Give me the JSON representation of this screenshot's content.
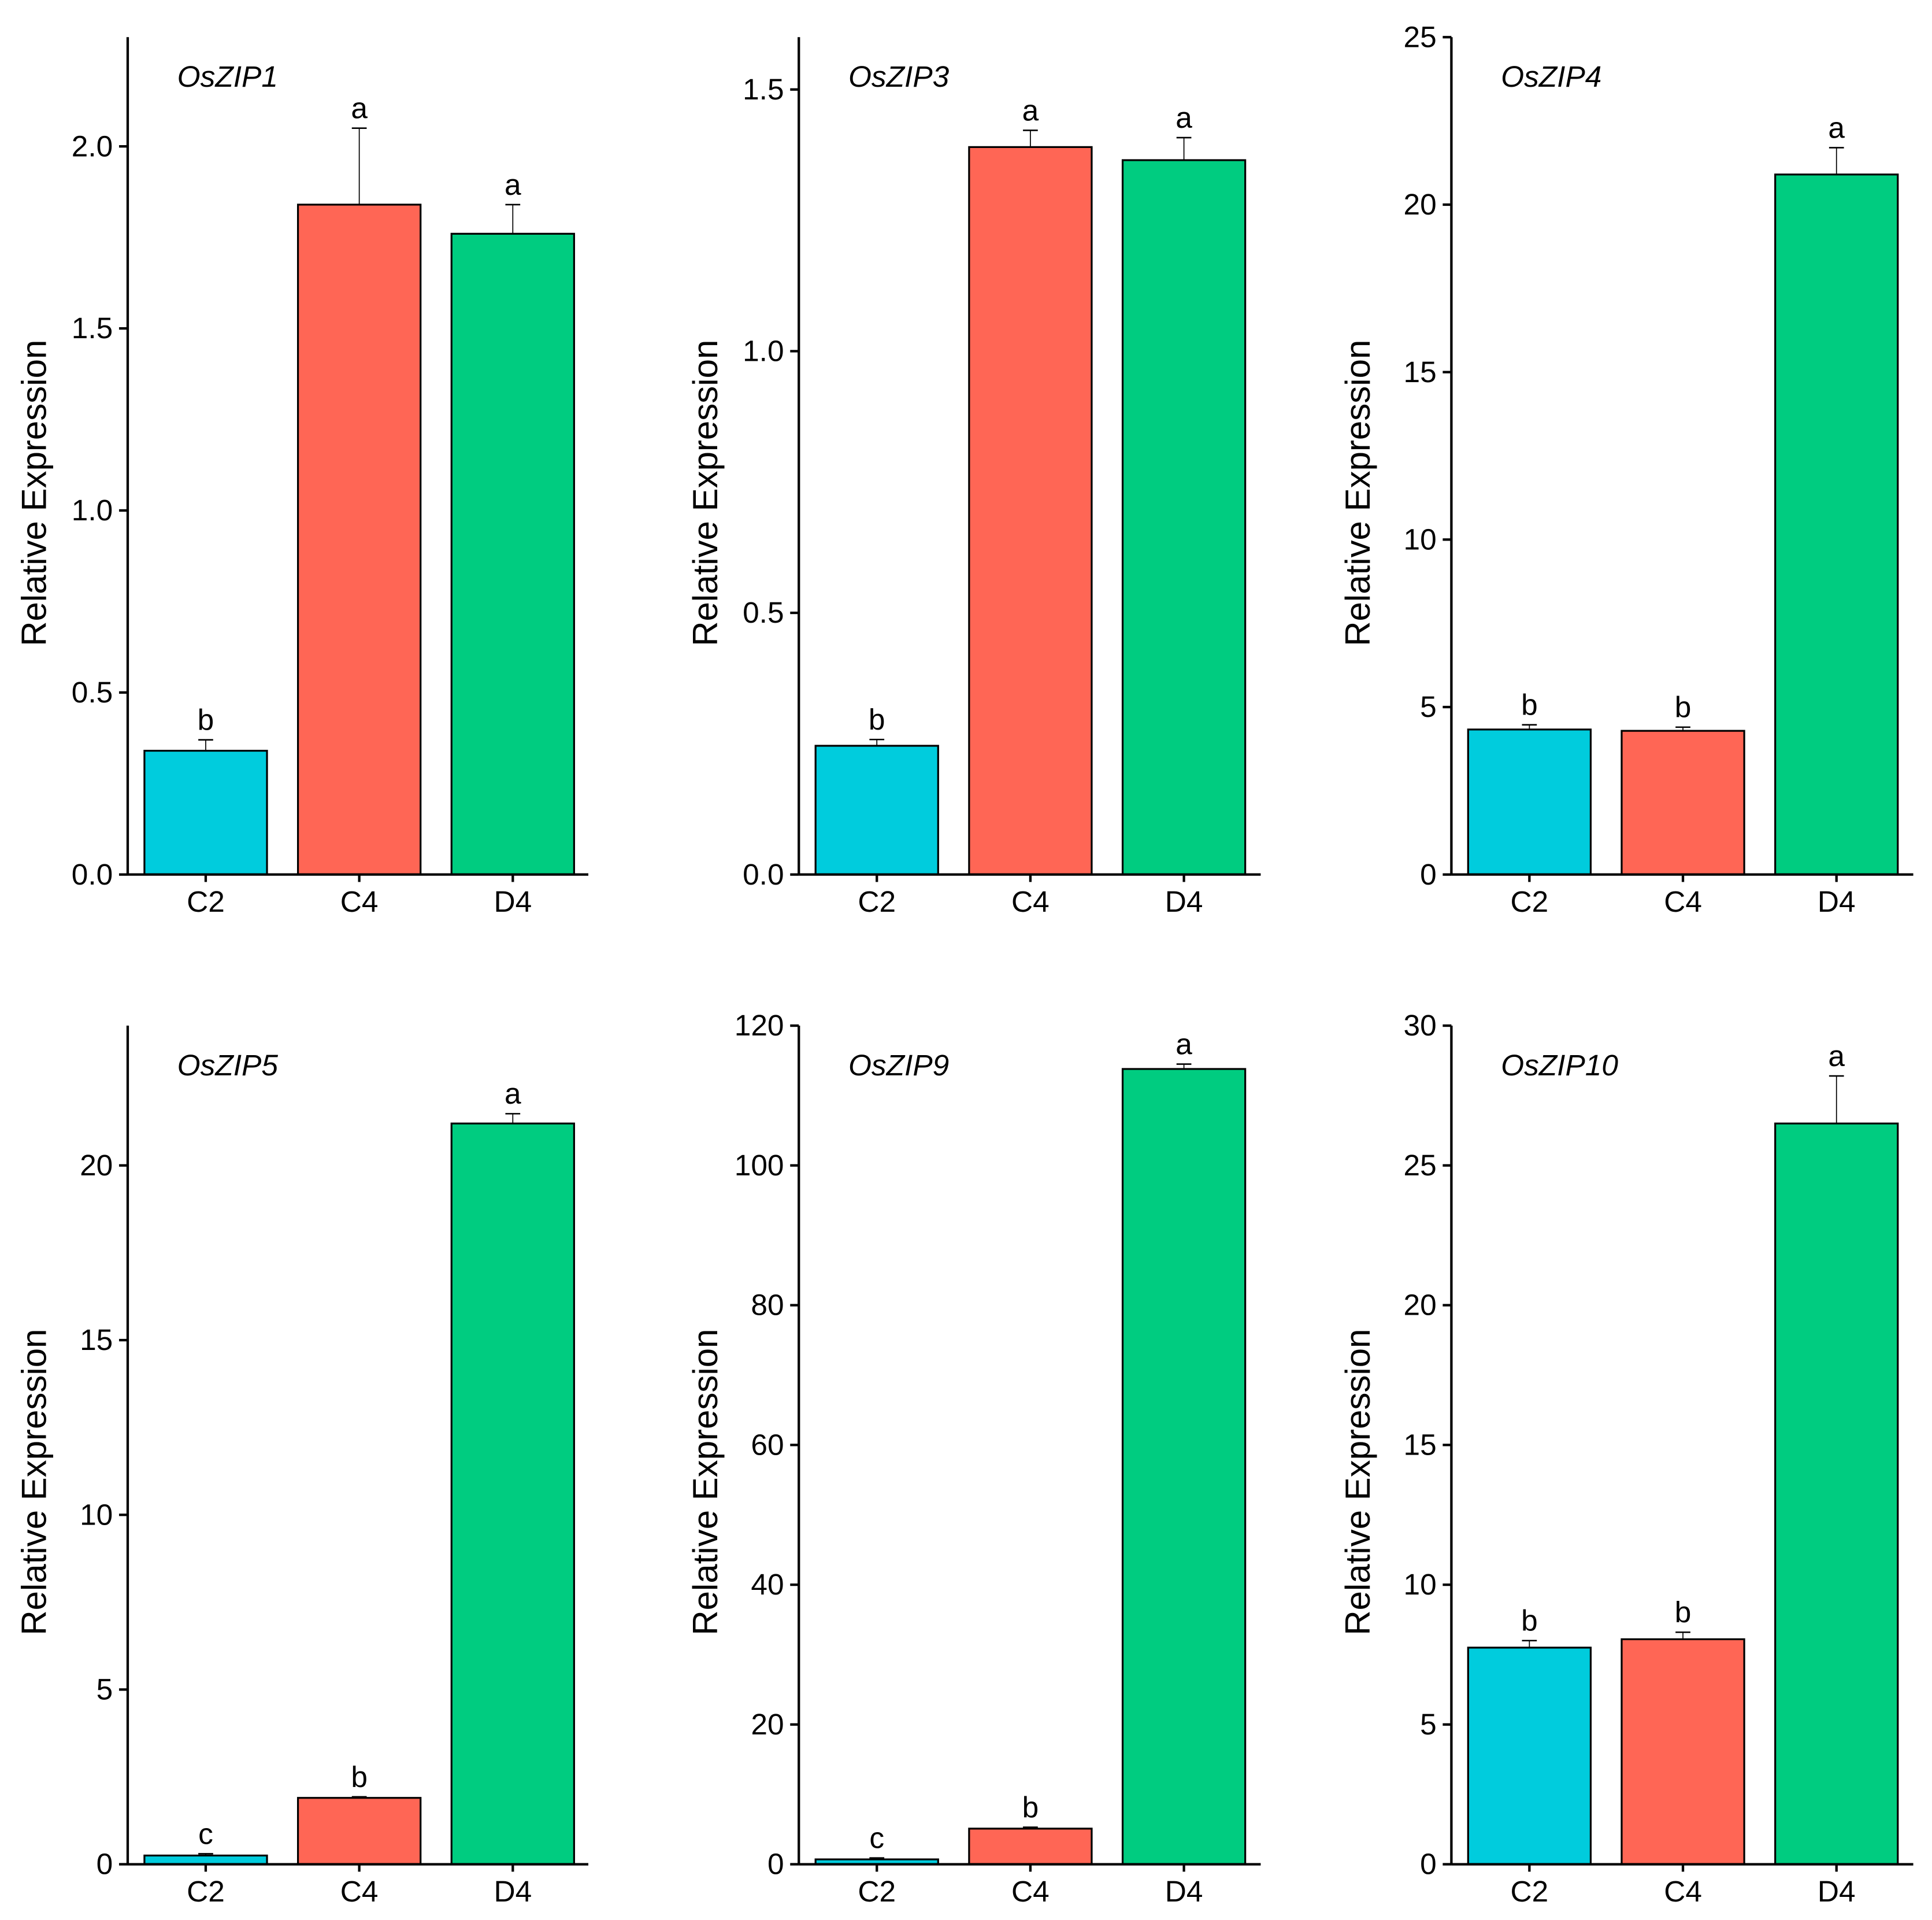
{
  "colors": {
    "C2": "#00CCDD",
    "C4": "#FF6655",
    "D4": "#00CC80",
    "axis": "#000000"
  },
  "chart_data": [
    {
      "type": "bar",
      "title": "OsZIP1",
      "ylabel": "Relative Expression",
      "categories": [
        "C2",
        "C4",
        "D4"
      ],
      "values": [
        0.34,
        1.84,
        1.76
      ],
      "errors": [
        0.03,
        0.21,
        0.08
      ],
      "letters": [
        "b",
        "a",
        "a"
      ],
      "ylim": [
        0,
        2.3
      ],
      "yticks": [
        0.0,
        0.5,
        1.0,
        1.5,
        2.0
      ],
      "ytick_labels": [
        "0.0",
        "0.5",
        "1.0",
        "1.5",
        "2.0"
      ]
    },
    {
      "type": "bar",
      "title": "OsZIP3",
      "ylabel": "Relative Expression",
      "categories": [
        "C2",
        "C4",
        "D4"
      ],
      "values": [
        0.246,
        1.39,
        1.365
      ],
      "errors": [
        0.012,
        0.032,
        0.043
      ],
      "letters": [
        "b",
        "a",
        "a"
      ],
      "ylim": [
        0,
        1.6
      ],
      "yticks": [
        0.0,
        0.5,
        1.0,
        1.5
      ],
      "ytick_labels": [
        "0.0",
        "0.5",
        "1.0",
        "1.5"
      ]
    },
    {
      "type": "bar",
      "title": "OsZIP4",
      "ylabel": "Relative Expression",
      "categories": [
        "C2",
        "C4",
        "D4"
      ],
      "values": [
        4.33,
        4.29,
        20.9
      ],
      "errors": [
        0.14,
        0.11,
        0.8
      ],
      "letters": [
        "b",
        "b",
        "a"
      ],
      "ylim": [
        0,
        25
      ],
      "yticks": [
        0,
        5,
        10,
        15,
        20,
        25
      ],
      "ytick_labels": [
        "0",
        "5",
        "10",
        "15",
        "20",
        "25"
      ]
    },
    {
      "type": "bar",
      "title": "OsZIP5",
      "ylabel": "Relative Expression",
      "categories": [
        "C2",
        "C4",
        "D4"
      ],
      "values": [
        0.25,
        1.9,
        21.2
      ],
      "errors": [
        0.05,
        0.03,
        0.28
      ],
      "letters": [
        "c",
        "b",
        "a"
      ],
      "ylim": [
        0,
        24
      ],
      "yticks": [
        0,
        5,
        10,
        15,
        20
      ],
      "ytick_labels": [
        "0",
        "5",
        "10",
        "15",
        "20"
      ]
    },
    {
      "type": "bar",
      "title": "OsZIP9",
      "ylabel": "Relative Expression",
      "categories": [
        "C2",
        "C4",
        "D4"
      ],
      "values": [
        0.7,
        5.1,
        113.8
      ],
      "errors": [
        0.2,
        0.2,
        0.7
      ],
      "letters": [
        "c",
        "b",
        "a"
      ],
      "ylim": [
        0,
        120
      ],
      "yticks": [
        0,
        20,
        40,
        60,
        80,
        100,
        120
      ],
      "ytick_labels": [
        "0",
        "20",
        "40",
        "60",
        "80",
        "100",
        "120"
      ]
    },
    {
      "type": "bar",
      "title": "OsZIP10",
      "ylabel": "Relative Expression",
      "categories": [
        "C2",
        "C4",
        "D4"
      ],
      "values": [
        7.75,
        8.05,
        26.5
      ],
      "errors": [
        0.25,
        0.25,
        1.7
      ],
      "letters": [
        "b",
        "b",
        "a"
      ],
      "ylim": [
        0,
        30
      ],
      "yticks": [
        0,
        5,
        10,
        15,
        20,
        25,
        30
      ],
      "ytick_labels": [
        "0",
        "5",
        "10",
        "15",
        "20",
        "25",
        "30"
      ]
    }
  ]
}
